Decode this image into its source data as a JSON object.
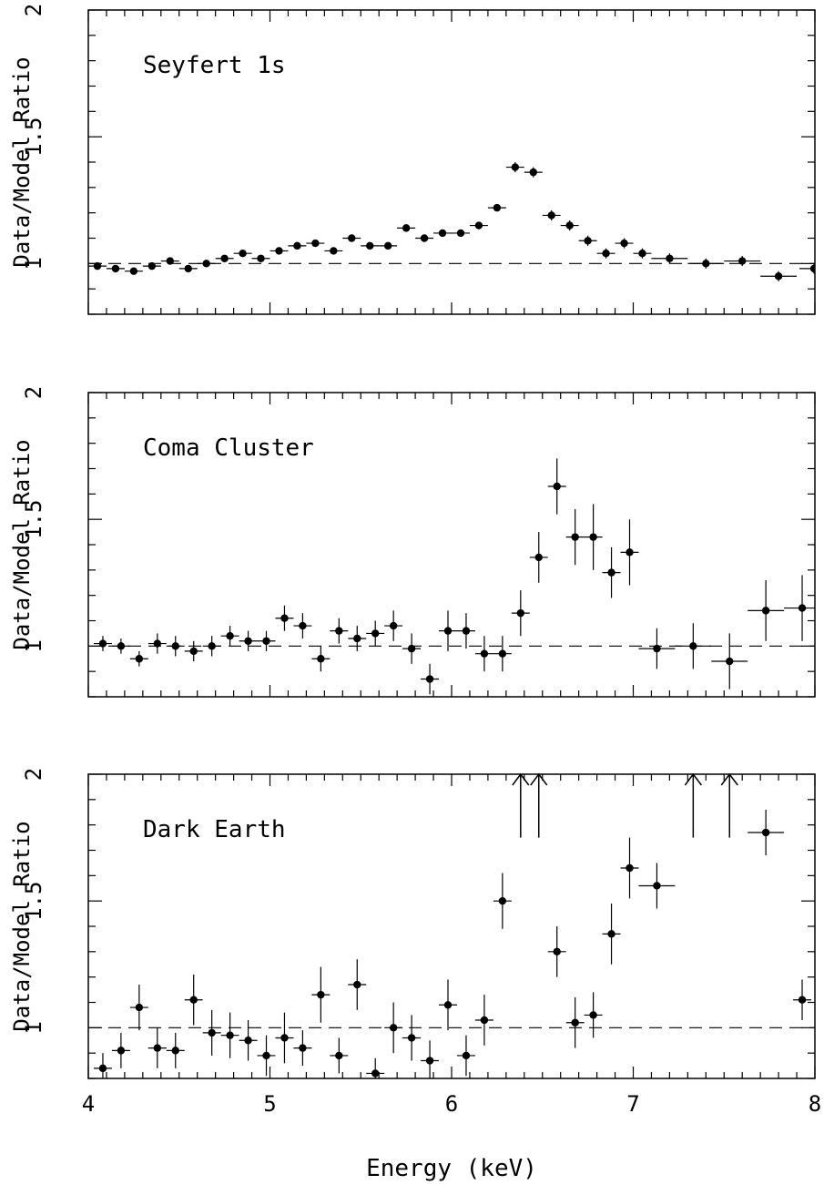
{
  "xlabel": "Energy (keV)",
  "chart_data": [
    {
      "type": "scatter",
      "title": "Seyfert 1s",
      "ylabel": "Data/Model Ratio",
      "xlim": [
        4,
        8
      ],
      "ylim": [
        0.8,
        2
      ],
      "xticks": [
        "4",
        "5",
        "6",
        "7",
        "8"
      ],
      "yticks": [
        "1",
        "1.5",
        "2"
      ],
      "reference_line": 1,
      "x_tick_labels_shown": false,
      "points": [
        {
          "x": 4.05,
          "y": 0.99,
          "xerr": 0.05,
          "yerr": 0.01
        },
        {
          "x": 4.15,
          "y": 0.98,
          "xerr": 0.05,
          "yerr": 0.01
        },
        {
          "x": 4.25,
          "y": 0.97,
          "xerr": 0.05,
          "yerr": 0.01
        },
        {
          "x": 4.35,
          "y": 0.99,
          "xerr": 0.05,
          "yerr": 0.01
        },
        {
          "x": 4.45,
          "y": 1.01,
          "xerr": 0.05,
          "yerr": 0.01
        },
        {
          "x": 4.55,
          "y": 0.98,
          "xerr": 0.05,
          "yerr": 0.01
        },
        {
          "x": 4.65,
          "y": 1.0,
          "xerr": 0.05,
          "yerr": 0.01
        },
        {
          "x": 4.75,
          "y": 1.02,
          "xerr": 0.05,
          "yerr": 0.01
        },
        {
          "x": 4.85,
          "y": 1.04,
          "xerr": 0.05,
          "yerr": 0.01
        },
        {
          "x": 4.95,
          "y": 1.02,
          "xerr": 0.05,
          "yerr": 0.01
        },
        {
          "x": 5.05,
          "y": 1.05,
          "xerr": 0.05,
          "yerr": 0.01
        },
        {
          "x": 5.15,
          "y": 1.07,
          "xerr": 0.05,
          "yerr": 0.01
        },
        {
          "x": 5.25,
          "y": 1.08,
          "xerr": 0.05,
          "yerr": 0.01
        },
        {
          "x": 5.35,
          "y": 1.05,
          "xerr": 0.05,
          "yerr": 0.01
        },
        {
          "x": 5.45,
          "y": 1.1,
          "xerr": 0.05,
          "yerr": 0.01
        },
        {
          "x": 5.55,
          "y": 1.07,
          "xerr": 0.05,
          "yerr": 0.01
        },
        {
          "x": 5.65,
          "y": 1.07,
          "xerr": 0.05,
          "yerr": 0.01
        },
        {
          "x": 5.75,
          "y": 1.14,
          "xerr": 0.05,
          "yerr": 0.01
        },
        {
          "x": 5.85,
          "y": 1.1,
          "xerr": 0.05,
          "yerr": 0.01
        },
        {
          "x": 5.95,
          "y": 1.12,
          "xerr": 0.05,
          "yerr": 0.01
        },
        {
          "x": 6.05,
          "y": 1.12,
          "xerr": 0.05,
          "yerr": 0.01
        },
        {
          "x": 6.15,
          "y": 1.15,
          "xerr": 0.05,
          "yerr": 0.01
        },
        {
          "x": 6.25,
          "y": 1.22,
          "xerr": 0.05,
          "yerr": 0.01
        },
        {
          "x": 6.35,
          "y": 1.38,
          "xerr": 0.05,
          "yerr": 0.02
        },
        {
          "x": 6.45,
          "y": 1.36,
          "xerr": 0.05,
          "yerr": 0.02
        },
        {
          "x": 6.55,
          "y": 1.19,
          "xerr": 0.05,
          "yerr": 0.02
        },
        {
          "x": 6.65,
          "y": 1.15,
          "xerr": 0.05,
          "yerr": 0.02
        },
        {
          "x": 6.75,
          "y": 1.09,
          "xerr": 0.05,
          "yerr": 0.02
        },
        {
          "x": 6.85,
          "y": 1.04,
          "xerr": 0.05,
          "yerr": 0.02
        },
        {
          "x": 6.95,
          "y": 1.08,
          "xerr": 0.05,
          "yerr": 0.02
        },
        {
          "x": 7.05,
          "y": 1.04,
          "xerr": 0.05,
          "yerr": 0.02
        },
        {
          "x": 7.2,
          "y": 1.02,
          "xerr": 0.1,
          "yerr": 0.02
        },
        {
          "x": 7.4,
          "y": 1.0,
          "xerr": 0.1,
          "yerr": 0.02
        },
        {
          "x": 7.6,
          "y": 1.01,
          "xerr": 0.1,
          "yerr": 0.02
        },
        {
          "x": 7.8,
          "y": 0.95,
          "xerr": 0.1,
          "yerr": 0.02
        },
        {
          "x": 7.995,
          "y": 0.98,
          "xerr": 0.08,
          "yerr": 0.02
        }
      ],
      "arrows": []
    },
    {
      "type": "scatter",
      "title": "Coma Cluster",
      "ylabel": "Data/Model Ratio",
      "xlim": [
        4,
        8
      ],
      "ylim": [
        0.8,
        2
      ],
      "xticks": [
        "4",
        "5",
        "6",
        "7",
        "8"
      ],
      "yticks": [
        "1",
        "1.5",
        "2"
      ],
      "reference_line": 1,
      "x_tick_labels_shown": false,
      "points": [
        {
          "x": 4.08,
          "y": 1.01,
          "xerr": 0.05,
          "yerr": 0.03
        },
        {
          "x": 4.18,
          "y": 1.0,
          "xerr": 0.05,
          "yerr": 0.03
        },
        {
          "x": 4.28,
          "y": 0.95,
          "xerr": 0.05,
          "yerr": 0.03
        },
        {
          "x": 4.38,
          "y": 1.01,
          "xerr": 0.05,
          "yerr": 0.04
        },
        {
          "x": 4.48,
          "y": 1.0,
          "xerr": 0.05,
          "yerr": 0.04
        },
        {
          "x": 4.58,
          "y": 0.98,
          "xerr": 0.05,
          "yerr": 0.04
        },
        {
          "x": 4.68,
          "y": 1.0,
          "xerr": 0.05,
          "yerr": 0.04
        },
        {
          "x": 4.78,
          "y": 1.04,
          "xerr": 0.05,
          "yerr": 0.04
        },
        {
          "x": 4.88,
          "y": 1.02,
          "xerr": 0.05,
          "yerr": 0.04
        },
        {
          "x": 4.98,
          "y": 1.02,
          "xerr": 0.05,
          "yerr": 0.04
        },
        {
          "x": 5.08,
          "y": 1.11,
          "xerr": 0.05,
          "yerr": 0.05
        },
        {
          "x": 5.18,
          "y": 1.08,
          "xerr": 0.05,
          "yerr": 0.05
        },
        {
          "x": 5.28,
          "y": 0.95,
          "xerr": 0.05,
          "yerr": 0.05
        },
        {
          "x": 5.38,
          "y": 1.06,
          "xerr": 0.05,
          "yerr": 0.05
        },
        {
          "x": 5.48,
          "y": 1.03,
          "xerr": 0.05,
          "yerr": 0.05
        },
        {
          "x": 5.58,
          "y": 1.05,
          "xerr": 0.05,
          "yerr": 0.05
        },
        {
          "x": 5.68,
          "y": 1.08,
          "xerr": 0.05,
          "yerr": 0.06
        },
        {
          "x": 5.78,
          "y": 0.99,
          "xerr": 0.05,
          "yerr": 0.06
        },
        {
          "x": 5.88,
          "y": 0.87,
          "xerr": 0.05,
          "yerr": 0.06
        },
        {
          "x": 5.98,
          "y": 1.06,
          "xerr": 0.05,
          "yerr": 0.08
        },
        {
          "x": 6.08,
          "y": 1.06,
          "xerr": 0.05,
          "yerr": 0.07
        },
        {
          "x": 6.18,
          "y": 0.97,
          "xerr": 0.05,
          "yerr": 0.07
        },
        {
          "x": 6.28,
          "y": 0.97,
          "xerr": 0.05,
          "yerr": 0.07
        },
        {
          "x": 6.38,
          "y": 1.13,
          "xerr": 0.05,
          "yerr": 0.09
        },
        {
          "x": 6.48,
          "y": 1.35,
          "xerr": 0.05,
          "yerr": 0.1
        },
        {
          "x": 6.58,
          "y": 1.63,
          "xerr": 0.05,
          "yerr": 0.11
        },
        {
          "x": 6.68,
          "y": 1.43,
          "xerr": 0.05,
          "yerr": 0.11
        },
        {
          "x": 6.78,
          "y": 1.43,
          "xerr": 0.05,
          "yerr": 0.13
        },
        {
          "x": 6.88,
          "y": 1.29,
          "xerr": 0.05,
          "yerr": 0.1
        },
        {
          "x": 6.98,
          "y": 1.37,
          "xerr": 0.05,
          "yerr": 0.13
        },
        {
          "x": 7.13,
          "y": 0.99,
          "xerr": 0.1,
          "yerr": 0.08
        },
        {
          "x": 7.33,
          "y": 1.0,
          "xerr": 0.1,
          "yerr": 0.09
        },
        {
          "x": 7.53,
          "y": 0.94,
          "xerr": 0.1,
          "yerr": 0.11
        },
        {
          "x": 7.73,
          "y": 1.14,
          "xerr": 0.1,
          "yerr": 0.12
        },
        {
          "x": 7.93,
          "y": 1.15,
          "xerr": 0.1,
          "yerr": 0.13
        }
      ],
      "arrows": []
    },
    {
      "type": "scatter",
      "title": "Dark Earth",
      "ylabel": "Data/Model Ratio",
      "xlim": [
        4,
        8
      ],
      "ylim": [
        0.8,
        2
      ],
      "xticks": [
        "4",
        "5",
        "6",
        "7",
        "8"
      ],
      "yticks": [
        "1",
        "1.5",
        "2"
      ],
      "reference_line": 1,
      "x_tick_labels_shown": true,
      "points": [
        {
          "x": 4.08,
          "y": 0.84,
          "xerr": 0.05,
          "yerr": 0.06
        },
        {
          "x": 4.18,
          "y": 0.91,
          "xerr": 0.05,
          "yerr": 0.07
        },
        {
          "x": 4.28,
          "y": 1.08,
          "xerr": 0.05,
          "yerr": 0.09
        },
        {
          "x": 4.38,
          "y": 0.92,
          "xerr": 0.05,
          "yerr": 0.08
        },
        {
          "x": 4.48,
          "y": 0.91,
          "xerr": 0.05,
          "yerr": 0.07
        },
        {
          "x": 4.58,
          "y": 1.11,
          "xerr": 0.05,
          "yerr": 0.1
        },
        {
          "x": 4.68,
          "y": 0.98,
          "xerr": 0.05,
          "yerr": 0.09
        },
        {
          "x": 4.78,
          "y": 0.97,
          "xerr": 0.05,
          "yerr": 0.09
        },
        {
          "x": 4.88,
          "y": 0.95,
          "xerr": 0.05,
          "yerr": 0.08
        },
        {
          "x": 4.98,
          "y": 0.89,
          "xerr": 0.05,
          "yerr": 0.08
        },
        {
          "x": 5.08,
          "y": 0.96,
          "xerr": 0.05,
          "yerr": 0.1
        },
        {
          "x": 5.18,
          "y": 0.92,
          "xerr": 0.05,
          "yerr": 0.07
        },
        {
          "x": 5.28,
          "y": 1.13,
          "xerr": 0.05,
          "yerr": 0.11
        },
        {
          "x": 5.38,
          "y": 0.89,
          "xerr": 0.05,
          "yerr": 0.07
        },
        {
          "x": 5.48,
          "y": 1.17,
          "xerr": 0.05,
          "yerr": 0.1
        },
        {
          "x": 5.58,
          "y": 0.82,
          "xerr": 0.05,
          "yerr": 0.06
        },
        {
          "x": 5.68,
          "y": 1.0,
          "xerr": 0.05,
          "yerr": 0.1
        },
        {
          "x": 5.78,
          "y": 0.96,
          "xerr": 0.05,
          "yerr": 0.09
        },
        {
          "x": 5.88,
          "y": 0.87,
          "xerr": 0.05,
          "yerr": 0.08
        },
        {
          "x": 5.98,
          "y": 1.09,
          "xerr": 0.05,
          "yerr": 0.1
        },
        {
          "x": 6.08,
          "y": 0.89,
          "xerr": 0.05,
          "yerr": 0.08
        },
        {
          "x": 6.18,
          "y": 1.03,
          "xerr": 0.05,
          "yerr": 0.1
        },
        {
          "x": 6.28,
          "y": 1.5,
          "xerr": 0.05,
          "yerr": 0.11
        },
        {
          "x": 6.58,
          "y": 1.3,
          "xerr": 0.05,
          "yerr": 0.1
        },
        {
          "x": 6.68,
          "y": 1.02,
          "xerr": 0.05,
          "yerr": 0.1
        },
        {
          "x": 6.78,
          "y": 1.05,
          "xerr": 0.05,
          "yerr": 0.09
        },
        {
          "x": 6.88,
          "y": 1.37,
          "xerr": 0.05,
          "yerr": 0.12
        },
        {
          "x": 6.98,
          "y": 1.63,
          "xerr": 0.05,
          "yerr": 0.12
        },
        {
          "x": 7.13,
          "y": 1.56,
          "xerr": 0.1,
          "yerr": 0.09
        },
        {
          "x": 7.73,
          "y": 1.77,
          "xerr": 0.1,
          "yerr": 0.09
        },
        {
          "x": 7.93,
          "y": 1.11,
          "xerr": 0.05,
          "yerr": 0.08
        }
      ],
      "arrows": [
        {
          "x": 6.38,
          "y_from": 1.75,
          "y_to": 2.0
        },
        {
          "x": 6.48,
          "y_from": 1.75,
          "y_to": 2.0
        },
        {
          "x": 7.33,
          "y_from": 1.75,
          "y_to": 2.0
        },
        {
          "x": 7.53,
          "y_from": 1.75,
          "y_to": 2.0
        }
      ]
    }
  ]
}
